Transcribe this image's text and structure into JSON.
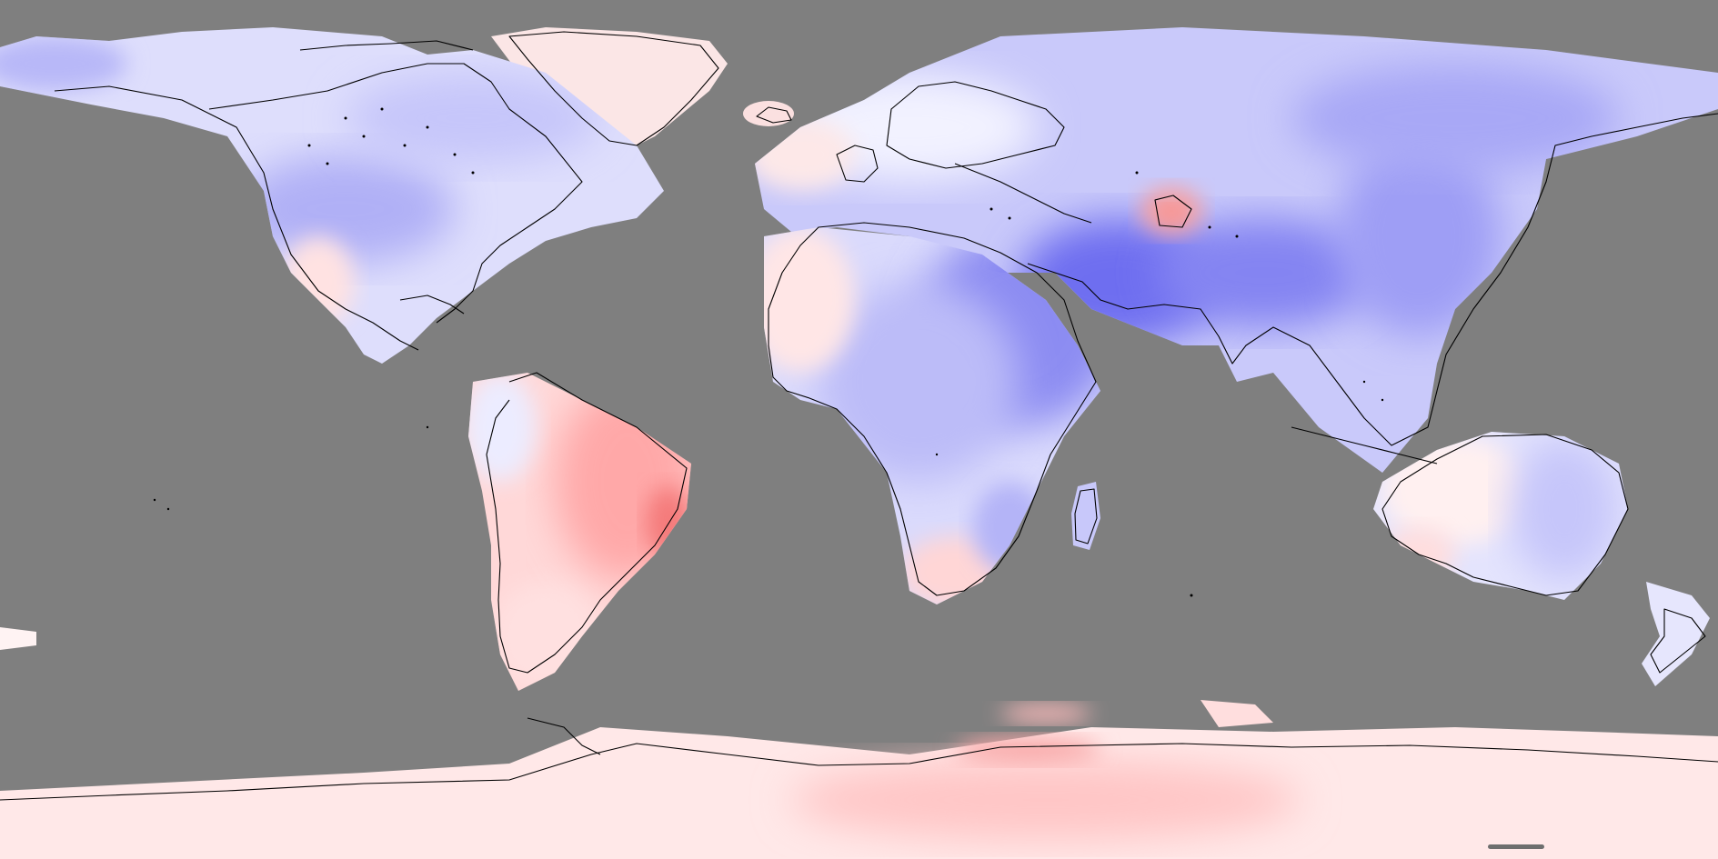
{
  "map": {
    "projection": "equirectangular",
    "ocean_color": "#7f7f7f",
    "coastline_color": "#000000",
    "colormap": {
      "strong_negative": "#6666f0",
      "negative": "#9a9af5",
      "weak_negative": "#ccccfa",
      "near_zero_cool": "#ececff",
      "near_zero_warm": "#fff0f0",
      "weak_positive": "#ffd2d2",
      "positive": "#ffb0b0",
      "strong_positive": "#f47a7a"
    },
    "regions": [
      {
        "name": "north-america",
        "anomaly": "weak-negative"
      },
      {
        "name": "greenland",
        "anomaly": "near-zero-warm"
      },
      {
        "name": "south-america",
        "anomaly": "positive"
      },
      {
        "name": "europe",
        "anomaly": "near-zero"
      },
      {
        "name": "africa",
        "anomaly": "negative"
      },
      {
        "name": "middle-east",
        "anomaly": "strong-negative"
      },
      {
        "name": "central-asia",
        "anomaly": "negative"
      },
      {
        "name": "south-asia",
        "anomaly": "strong-negative"
      },
      {
        "name": "east-asia",
        "anomaly": "negative"
      },
      {
        "name": "australia",
        "anomaly": "weak-negative"
      },
      {
        "name": "antarctica",
        "anomaly": "weak-positive"
      }
    ]
  },
  "scale_bar": {
    "color": "#6e6e6e"
  }
}
